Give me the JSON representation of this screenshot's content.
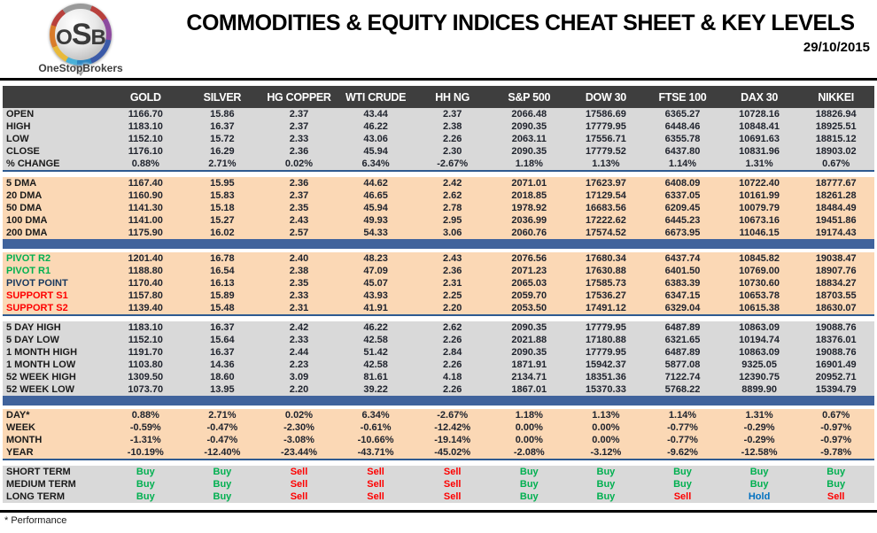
{
  "header": {
    "brand_acronym_left": "O",
    "brand_acronym_mid": "S",
    "brand_acronym_right": "B",
    "brand": "OneStopBrokers",
    "title": "COMMODITIES & EQUITY INDICES CHEAT SHEET & KEY LEVELS",
    "date": "29/10/2015"
  },
  "colors": {
    "green": "#00b050",
    "red": "#fe0000",
    "navy": "#17375e",
    "buy": "#00b050",
    "sell": "#fe0000",
    "hold": "#0070c0",
    "section_peach": "#fbd8b5",
    "section_gray": "#d9d9d9",
    "separator_blue": "#40639c",
    "header_charcoal": "#3e3e3e"
  },
  "table": {
    "columns": [
      "GOLD",
      "SILVER",
      "HG COPPER",
      "WTI CRUDE",
      "HH NG",
      "S&P 500",
      "DOW 30",
      "FTSE 100",
      "DAX 30",
      "NIKKEI"
    ],
    "sections": [
      {
        "id": "ohlc",
        "bg": "gray",
        "separator_after": "thin",
        "rows": [
          {
            "label": "OPEN",
            "values": [
              "1166.70",
              "15.86",
              "2.37",
              "43.44",
              "2.37",
              "2066.48",
              "17586.69",
              "6365.27",
              "10728.16",
              "18826.94"
            ]
          },
          {
            "label": "HIGH",
            "values": [
              "1183.10",
              "16.37",
              "2.37",
              "46.22",
              "2.38",
              "2090.35",
              "17779.95",
              "6448.46",
              "10848.41",
              "18925.51"
            ]
          },
          {
            "label": "LOW",
            "values": [
              "1152.10",
              "15.72",
              "2.33",
              "43.06",
              "2.26",
              "2063.11",
              "17556.71",
              "6355.78",
              "10691.63",
              "18815.12"
            ]
          },
          {
            "label": "CLOSE",
            "values": [
              "1176.10",
              "16.29",
              "2.36",
              "45.94",
              "2.30",
              "2090.35",
              "17779.52",
              "6437.80",
              "10831.96",
              "18903.02"
            ]
          },
          {
            "label": "% CHANGE",
            "values": [
              "0.88%",
              "2.71%",
              "0.02%",
              "6.34%",
              "-2.67%",
              "1.18%",
              "1.13%",
              "1.14%",
              "1.31%",
              "0.67%"
            ]
          }
        ]
      },
      {
        "id": "dma",
        "bg": "peach",
        "separator_after": "bar",
        "rows": [
          {
            "label": "5 DMA",
            "values": [
              "1167.40",
              "15.95",
              "2.36",
              "44.62",
              "2.42",
              "2071.01",
              "17623.97",
              "6408.09",
              "10722.40",
              "18777.67"
            ]
          },
          {
            "label": "20 DMA",
            "values": [
              "1160.90",
              "15.83",
              "2.37",
              "46.65",
              "2.62",
              "2018.85",
              "17129.54",
              "6337.05",
              "10161.99",
              "18261.28"
            ]
          },
          {
            "label": "50 DMA",
            "values": [
              "1141.30",
              "15.18",
              "2.35",
              "45.94",
              "2.78",
              "1978.92",
              "16683.56",
              "6209.45",
              "10079.79",
              "18484.49"
            ]
          },
          {
            "label": "100 DMA",
            "values": [
              "1141.00",
              "15.27",
              "2.43",
              "49.93",
              "2.95",
              "2036.99",
              "17222.62",
              "6445.23",
              "10673.16",
              "19451.86"
            ]
          },
          {
            "label": "200 DMA",
            "values": [
              "1175.90",
              "16.02",
              "2.57",
              "54.33",
              "3.06",
              "2060.76",
              "17574.52",
              "6673.95",
              "11046.15",
              "19174.43"
            ]
          }
        ]
      },
      {
        "id": "pivots",
        "bg": "peach",
        "separator_after": "thin",
        "rows": [
          {
            "label": "PIVOT R2",
            "label_color": "green",
            "values": [
              "1201.40",
              "16.78",
              "2.40",
              "48.23",
              "2.43",
              "2076.56",
              "17680.34",
              "6437.74",
              "10845.82",
              "19038.47"
            ]
          },
          {
            "label": "PIVOT R1",
            "label_color": "green",
            "values": [
              "1188.80",
              "16.54",
              "2.38",
              "47.09",
              "2.36",
              "2071.23",
              "17630.88",
              "6401.50",
              "10769.00",
              "18907.76"
            ]
          },
          {
            "label": "PIVOT POINT",
            "label_color": "navy",
            "values": [
              "1170.40",
              "16.13",
              "2.35",
              "45.07",
              "2.31",
              "2065.03",
              "17585.73",
              "6383.39",
              "10730.60",
              "18834.27"
            ]
          },
          {
            "label": "SUPPORT S1",
            "label_color": "red",
            "values": [
              "1157.80",
              "15.89",
              "2.33",
              "43.93",
              "2.25",
              "2059.70",
              "17536.27",
              "6347.15",
              "10653.78",
              "18703.55"
            ]
          },
          {
            "label": "SUPPORT S2",
            "label_color": "red",
            "values": [
              "1139.40",
              "15.48",
              "2.31",
              "41.91",
              "2.20",
              "2053.50",
              "17491.12",
              "6329.04",
              "10615.38",
              "18630.07"
            ]
          }
        ]
      },
      {
        "id": "ranges",
        "bg": "gray",
        "separator_after": "bar",
        "rows": [
          {
            "label": "5 DAY HIGH",
            "values": [
              "1183.10",
              "16.37",
              "2.42",
              "46.22",
              "2.62",
              "2090.35",
              "17779.95",
              "6487.89",
              "10863.09",
              "19088.76"
            ]
          },
          {
            "label": "5 DAY LOW",
            "values": [
              "1152.10",
              "15.64",
              "2.33",
              "42.58",
              "2.26",
              "2021.88",
              "17180.88",
              "6321.65",
              "10194.74",
              "18376.01"
            ]
          },
          {
            "label": "1 MONTH HIGH",
            "values": [
              "1191.70",
              "16.37",
              "2.44",
              "51.42",
              "2.84",
              "2090.35",
              "17779.95",
              "6487.89",
              "10863.09",
              "19088.76"
            ]
          },
          {
            "label": "1 MONTH LOW",
            "values": [
              "1103.80",
              "14.36",
              "2.23",
              "42.58",
              "2.26",
              "1871.91",
              "15942.37",
              "5877.08",
              "9325.05",
              "16901.49"
            ]
          },
          {
            "label": "52 WEEK HIGH",
            "values": [
              "1309.50",
              "18.60",
              "3.09",
              "81.61",
              "4.18",
              "2134.71",
              "18351.36",
              "7122.74",
              "12390.75",
              "20952.71"
            ]
          },
          {
            "label": "52 WEEK LOW",
            "values": [
              "1073.70",
              "13.95",
              "2.20",
              "39.22",
              "2.26",
              "1867.01",
              "15370.33",
              "5768.22",
              "8899.90",
              "15394.79"
            ]
          }
        ]
      },
      {
        "id": "performance",
        "bg": "peach",
        "separator_after": "thin",
        "rows": [
          {
            "label": "DAY*",
            "values": [
              "0.88%",
              "2.71%",
              "0.02%",
              "6.34%",
              "-2.67%",
              "1.18%",
              "1.13%",
              "1.14%",
              "1.31%",
              "0.67%"
            ]
          },
          {
            "label": "WEEK",
            "values": [
              "-0.59%",
              "-0.47%",
              "-2.30%",
              "-0.61%",
              "-12.42%",
              "0.00%",
              "0.00%",
              "-0.77%",
              "-0.29%",
              "-0.97%"
            ]
          },
          {
            "label": "MONTH",
            "values": [
              "-1.31%",
              "-0.47%",
              "-3.08%",
              "-10.66%",
              "-19.14%",
              "0.00%",
              "0.00%",
              "-0.77%",
              "-0.29%",
              "-0.97%"
            ]
          },
          {
            "label": "YEAR",
            "values": [
              "-10.19%",
              "-12.40%",
              "-23.44%",
              "-43.71%",
              "-45.02%",
              "-2.08%",
              "-3.12%",
              "-9.62%",
              "-12.58%",
              "-9.78%"
            ]
          }
        ]
      },
      {
        "id": "signals",
        "bg": "gray",
        "separator_after": "none",
        "rows": [
          {
            "label": "SHORT TERM",
            "values": [
              "Buy",
              "Buy",
              "Sell",
              "Sell",
              "Sell",
              "Buy",
              "Buy",
              "Buy",
              "Buy",
              "Buy"
            ]
          },
          {
            "label": "MEDIUM TERM",
            "values": [
              "Buy",
              "Buy",
              "Sell",
              "Sell",
              "Sell",
              "Buy",
              "Buy",
              "Buy",
              "Buy",
              "Buy"
            ]
          },
          {
            "label": "LONG TERM",
            "values": [
              "Buy",
              "Buy",
              "Sell",
              "Sell",
              "Sell",
              "Buy",
              "Buy",
              "Sell",
              "Hold",
              "Sell"
            ]
          }
        ]
      }
    ]
  },
  "footnote": "* Performance"
}
